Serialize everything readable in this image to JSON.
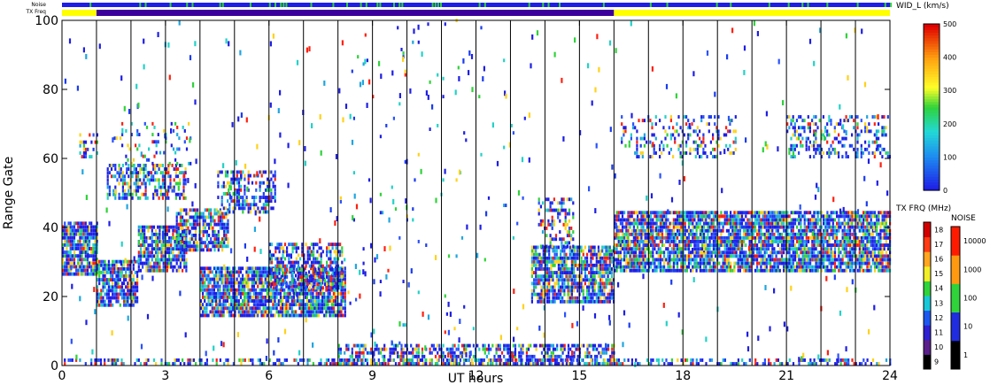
{
  "chart_data": {
    "type": "heatmap",
    "title": "",
    "xlabel": "UT hours",
    "ylabel": "Range Gate",
    "xlim": [
      0,
      24
    ],
    "ylim": [
      0,
      100
    ],
    "x_ticks": [
      "0",
      "3",
      "6",
      "9",
      "12",
      "15",
      "18",
      "21",
      "24"
    ],
    "y_ticks": [
      "0",
      "20",
      "40",
      "60",
      "80",
      "100"
    ],
    "x_tick_values": [
      0,
      3,
      6,
      9,
      12,
      15,
      18,
      21,
      24
    ],
    "y_tick_values": [
      0,
      20,
      40,
      60,
      80,
      100
    ],
    "hour_scan_lines": [
      1,
      2,
      3,
      4,
      5,
      6,
      7,
      8,
      9,
      10,
      11,
      12,
      13,
      14,
      15,
      16,
      17,
      18,
      19,
      20,
      21,
      22,
      23
    ],
    "parameter": {
      "label": "WID_L (km/s)",
      "ticks": [
        "0",
        "100",
        "200",
        "300",
        "400",
        "500"
      ],
      "range": [
        0,
        500
      ]
    },
    "top_bars": {
      "noise_label": "Noise",
      "txfreq_label": "TX Freq",
      "txfreq_segments": [
        {
          "start": 0,
          "end": 1,
          "color": "#ffff00"
        },
        {
          "start": 1,
          "end": 16,
          "color": "#3c009c"
        },
        {
          "start": 16,
          "end": 24,
          "color": "#ffff00"
        }
      ]
    },
    "txfreq_scale": {
      "label": "TX FRQ (MHz)",
      "ticks": [
        "9",
        "10",
        "11",
        "12",
        "13",
        "14",
        "15",
        "16",
        "17",
        "18"
      ],
      "colors": [
        "#000000",
        "#5a1f8a",
        "#2e1fd2",
        "#1d57f0",
        "#19c8d8",
        "#2fd33a",
        "#f2ee28",
        "#ffa51f",
        "#ff3a14",
        "#d40000"
      ]
    },
    "noise_scale": {
      "label": "NOISE",
      "ticks": [
        "1",
        "10",
        "100",
        "1000",
        "10000"
      ],
      "colors": [
        "#000000",
        "#1f2ce0",
        "#2fd33a",
        "#ff9a10",
        "#ff1a00"
      ]
    },
    "scatter_regions": [
      {
        "t0": 0.0,
        "t1": 1.0,
        "g0": 26,
        "g1": 41,
        "density": 0.85
      },
      {
        "t0": 0.5,
        "t1": 1.0,
        "g0": 60,
        "g1": 67,
        "density": 0.45
      },
      {
        "t0": 1.0,
        "t1": 2.2,
        "g0": 17,
        "g1": 30,
        "density": 0.8
      },
      {
        "t0": 2.2,
        "t1": 3.6,
        "g0": 27,
        "g1": 40,
        "density": 0.8
      },
      {
        "t0": 1.3,
        "t1": 3.6,
        "g0": 48,
        "g1": 58,
        "density": 0.55
      },
      {
        "t0": 1.5,
        "t1": 3.8,
        "g0": 58,
        "g1": 70,
        "density": 0.15
      },
      {
        "t0": 3.3,
        "t1": 4.8,
        "g0": 33,
        "g1": 45,
        "density": 0.7
      },
      {
        "t0": 4.0,
        "t1": 8.2,
        "g0": 14,
        "g1": 28,
        "density": 0.85
      },
      {
        "t0": 6.0,
        "t1": 8.1,
        "g0": 22,
        "g1": 35,
        "density": 0.6
      },
      {
        "t0": 4.5,
        "t1": 6.2,
        "g0": 44,
        "g1": 56,
        "density": 0.45
      },
      {
        "t0": 13.6,
        "t1": 16.0,
        "g0": 18,
        "g1": 34,
        "density": 0.8
      },
      {
        "t0": 13.8,
        "t1": 14.8,
        "g0": 34,
        "g1": 48,
        "density": 0.35
      },
      {
        "t0": 16.0,
        "t1": 24.0,
        "g0": 27,
        "g1": 44,
        "density": 0.85
      },
      {
        "t0": 16.2,
        "t1": 19.5,
        "g0": 60,
        "g1": 72,
        "density": 0.25
      },
      {
        "t0": 21.0,
        "t1": 24.0,
        "g0": 60,
        "g1": 72,
        "density": 0.35
      },
      {
        "t0": 0.0,
        "t1": 24.0,
        "g0": 0,
        "g1": 2,
        "density": 0.4
      },
      {
        "t0": 8.0,
        "t1": 16.0,
        "g0": 0,
        "g1": 6,
        "density": 0.55
      },
      {
        "t0": 8.0,
        "t1": 13.5,
        "g0": 6,
        "g1": 100,
        "density": 0.01
      }
    ]
  }
}
